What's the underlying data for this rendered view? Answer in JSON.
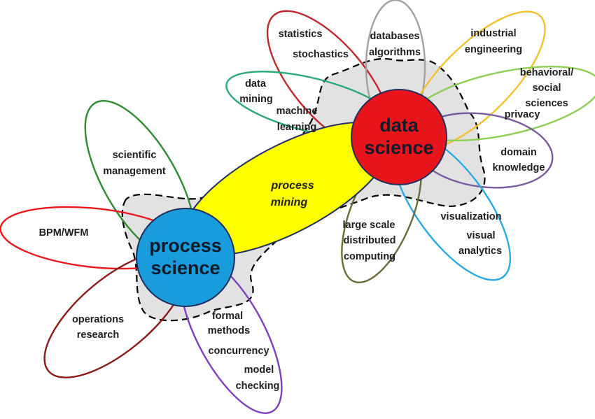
{
  "hubs": {
    "process_science": {
      "line1": "process",
      "line2": "science",
      "color": "#1a9bdc"
    },
    "data_science": {
      "line1": "data",
      "line2": "science",
      "color": "#e8141b"
    }
  },
  "bridge": {
    "line1": "process",
    "line2": "mining",
    "color": "#ffff00"
  },
  "petals": {
    "scientific_management": {
      "color": "#2e8b2e",
      "lines": [
        "scientific",
        "management"
      ]
    },
    "bpm_wfm": {
      "color": "#e8181f",
      "lines": [
        "BPM/WFM"
      ]
    },
    "operations_research": {
      "color": "#8b1a1a",
      "lines": [
        "operations",
        "research"
      ]
    },
    "formal_methods": {
      "color": "#7f3fbf",
      "lines": [
        "formal",
        "methods",
        "concurrency",
        "model",
        "checking"
      ]
    },
    "statistics": {
      "color": "#c0282e",
      "lines": [
        "statistics",
        "stochastics"
      ]
    },
    "databases": {
      "color": "#a0a0a0",
      "lines": [
        "databases",
        "algorithms"
      ]
    },
    "industrial_engineering": {
      "color": "#f2c12e",
      "lines": [
        "industrial",
        "engineering"
      ]
    },
    "behavioral_social": {
      "color": "#8ccf55",
      "lines": [
        "behavioral/",
        "social",
        "sciences"
      ]
    },
    "privacy": {
      "color": "#7a5c9e",
      "lines": [
        "privacy"
      ]
    },
    "domain_knowledge": {
      "color": "#7a5c9e",
      "lines": [
        "domain",
        "knowledge"
      ]
    },
    "visualization": {
      "color": "#29abe2",
      "lines": [
        "visualization",
        "visual",
        "analytics"
      ]
    },
    "large_scale": {
      "color": "#6b6b3a",
      "lines": [
        "large scale",
        "distributed",
        "computing"
      ]
    },
    "data_mining": {
      "color": "#2aa876",
      "lines": [
        "data",
        "mining",
        "machine",
        "learning"
      ]
    }
  }
}
